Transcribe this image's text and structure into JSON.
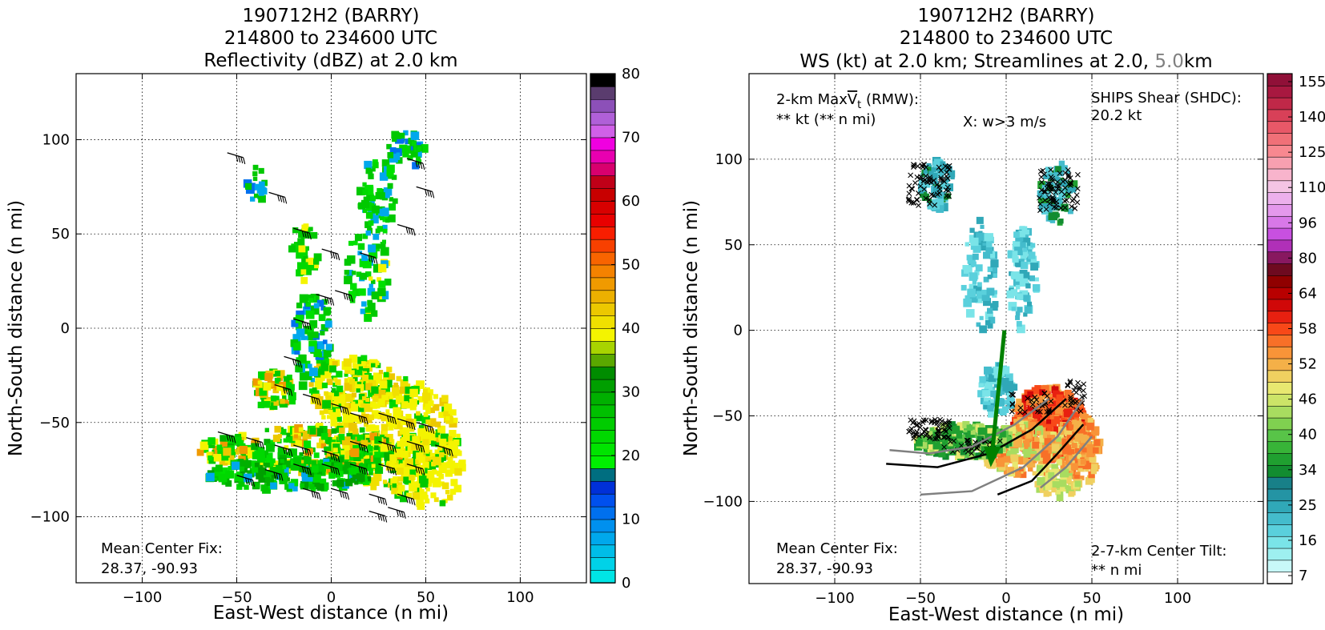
{
  "chart_data": [
    {
      "type": "heatmap",
      "title_lines": [
        "190712H2 (BARRY)",
        "214800 to 234600 UTC",
        "Reflectivity (dBZ) at 2.0 km"
      ],
      "xlabel": "East-West distance (n mi)",
      "ylabel": "North-South distance (n mi)",
      "xlim": [
        -135,
        135
      ],
      "ylim": [
        -135,
        135
      ],
      "xticks": [
        -100,
        -50,
        0,
        50,
        100
      ],
      "yticks": [
        -100,
        -50,
        0,
        50,
        100
      ],
      "grid": true,
      "annotation": {
        "line1": "Mean Center Fix:",
        "line2": "28.37, -90.93"
      },
      "colorbar": {
        "label_values": [
          0,
          10,
          20,
          30,
          40,
          50,
          60,
          70,
          80
        ],
        "min": 0,
        "max": 80,
        "colors": [
          "#00e5e5",
          "#00d2e8",
          "#00bde8",
          "#00a8ec",
          "#0090ee",
          "#0070ee",
          "#0050ee",
          "#0030d8",
          "#006e80",
          "#00f000",
          "#00e400",
          "#00d800",
          "#00cc00",
          "#00c000",
          "#00b000",
          "#009f00",
          "#008c00",
          "#5aa800",
          "#a8d400",
          "#f4f400",
          "#f0e000",
          "#ecc800",
          "#ecb000",
          "#f09a00",
          "#f48200",
          "#f86400",
          "#f84000",
          "#f81e00",
          "#e80000",
          "#d80000",
          "#c80000",
          "#c00018",
          "#d8006e",
          "#e800b0",
          "#f000e0",
          "#d060e8",
          "#b060d8",
          "#8c50b8",
          "#5a3c6e",
          "#000000"
        ]
      },
      "wind_barbs": true
    },
    {
      "type": "heatmap",
      "title_lines": [
        "190712H2 (BARRY)",
        "214800 to 234600 UTC",
        "WS (kt) at 2.0 km; Streamlines at 2.0, ",
        "5.0",
        "km"
      ],
      "xlabel": "East-West distance (n mi)",
      "ylabel": "North-South distance (n mi)",
      "xlim": [
        -150,
        150
      ],
      "ylim": [
        -148,
        150
      ],
      "xticks": [
        -100,
        -50,
        0,
        50,
        100
      ],
      "yticks": [
        -100,
        -50,
        0,
        50,
        100
      ],
      "grid": true,
      "annotations": {
        "maxvt_line1": "2-km Max",
        "maxvt_symbol": "V",
        "maxvt_sub": "t",
        "maxvt_rmw": " (RMW):",
        "maxvt_line2": "** kt (** n mi)",
        "w_marker": "X: w>3 m/s",
        "shear_line1": "SHIPS Shear (SHDC):",
        "shear_line2": "20.2 kt",
        "center_line1": "Mean Center Fix:",
        "center_line2": "28.37, -90.93",
        "tilt_line1": "2-7-km Center Tilt:",
        "tilt_line2": "** n mi"
      },
      "colors": {
        "shear": "#008000",
        "tilt": "#ff0000",
        "streamline_2km": "#000000",
        "streamline_5km": "#808080"
      },
      "colorbar": {
        "label_values": [
          7,
          16,
          25,
          34,
          40,
          46,
          52,
          58,
          64,
          80,
          96,
          110,
          125,
          140,
          155
        ],
        "colors": [
          "#ffffff",
          "#c8f8f8",
          "#9ef0f0",
          "#7ae4e8",
          "#5ad0dc",
          "#44bccc",
          "#30a8b8",
          "#2494a4",
          "#188088",
          "#128c30",
          "#20a030",
          "#38b438",
          "#58c448",
          "#80d050",
          "#a8dc60",
          "#cce468",
          "#e8e870",
          "#f0d060",
          "#f4b048",
          "#f89438",
          "#f87028",
          "#f84818",
          "#e82010",
          "#d00808",
          "#b80000",
          "#900000",
          "#6e0a20",
          "#881860",
          "#b030b8",
          "#c850e0",
          "#d878e8",
          "#e498ec",
          "#ecb0ec",
          "#f4c4e4",
          "#f8b4cc",
          "#f8a0b0",
          "#f88890",
          "#f07078",
          "#e85868",
          "#d84058",
          "#c02848",
          "#a81840",
          "#901038"
        ]
      }
    }
  ]
}
